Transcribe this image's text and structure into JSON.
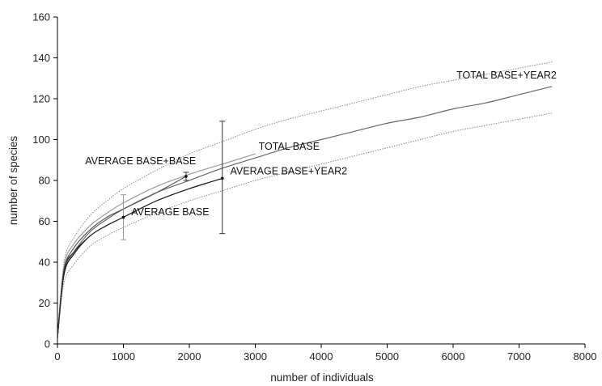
{
  "chart_data": {
    "type": "line",
    "xlabel": "number of individuals",
    "ylabel": "number of species",
    "xlim": [
      0,
      8000
    ],
    "ylim": [
      0,
      160
    ],
    "xticks": [
      0,
      1000,
      2000,
      3000,
      4000,
      5000,
      6000,
      7000,
      8000
    ],
    "yticks": [
      0,
      20,
      40,
      60,
      80,
      100,
      120,
      140,
      160
    ],
    "grid": false,
    "legend": "none",
    "series": [
      {
        "name": "TOTAL BASE+YEAR2",
        "color": "#666666",
        "style": "solid",
        "x": [
          0,
          100,
          250,
          500,
          750,
          1000,
          1500,
          2000,
          2500,
          3000,
          3500,
          4000,
          4500,
          5000,
          5500,
          6000,
          6500,
          7000,
          7500
        ],
        "y": [
          3,
          35,
          45,
          55,
          61,
          66,
          74,
          80,
          86,
          91,
          96,
          100,
          104,
          108,
          111,
          115,
          118,
          122,
          126
        ]
      },
      {
        "name": "",
        "color": "#888888",
        "style": "dotted",
        "x": [
          0,
          100,
          250,
          500,
          750,
          1000,
          1500,
          2000,
          2500,
          3000,
          3500,
          4000,
          4500,
          5000,
          5500,
          6000,
          6500,
          7000,
          7500
        ],
        "y": [
          3,
          40,
          52,
          63,
          70,
          76,
          85,
          93,
          99,
          105,
          110,
          114,
          118,
          122,
          126,
          129,
          132,
          135,
          138
        ]
      },
      {
        "name": "",
        "color": "#888888",
        "style": "dotted",
        "x": [
          0,
          100,
          250,
          500,
          750,
          1000,
          1500,
          2000,
          2500,
          3000,
          3500,
          4000,
          4500,
          5000,
          5500,
          6000,
          6500,
          7000,
          7500
        ],
        "y": [
          3,
          30,
          39,
          48,
          53,
          57,
          64,
          70,
          75,
          80,
          84,
          88,
          92,
          96,
          100,
          104,
          107,
          110,
          113
        ]
      },
      {
        "name": "TOTAL BASE",
        "color": "#999999",
        "style": "solid",
        "x": [
          0,
          100,
          250,
          500,
          750,
          1000,
          1500,
          2000,
          2500,
          3000
        ],
        "y": [
          3,
          38,
          49,
          58,
          64,
          69,
          77,
          83,
          88,
          93
        ]
      },
      {
        "name": "AVERAGE BASE+BASE",
        "color": "#555555",
        "style": "solid",
        "x": [
          0,
          100,
          250,
          500,
          750,
          1000,
          1500,
          1950
        ],
        "y": [
          3,
          36,
          47,
          56,
          62,
          66,
          74,
          82
        ]
      },
      {
        "name": "AVERAGE BASE+YEAR2",
        "color": "#111111",
        "style": "solid",
        "x": [
          0,
          100,
          250,
          500,
          750,
          1000,
          1500,
          2000,
          2500
        ],
        "y": [
          3,
          34,
          44,
          53,
          58,
          62,
          70,
          76,
          81
        ]
      },
      {
        "name": "AVERAGE BASE",
        "color": "#333333",
        "style": "solid",
        "x": [
          0,
          100,
          250,
          500,
          750,
          1000
        ],
        "y": [
          3,
          36,
          45,
          53,
          58,
          62
        ]
      }
    ],
    "error_bars": [
      {
        "x": 1000,
        "y": 62,
        "low": 51,
        "high": 73,
        "color": "#999999"
      },
      {
        "x": 1950,
        "y": 82,
        "low": 80,
        "high": 84,
        "color": "#333333"
      },
      {
        "x": 2500,
        "y": 81,
        "low": 54,
        "high": 109,
        "color": "#333333"
      }
    ],
    "annotations": [
      {
        "text": "TOTAL BASE+YEAR2",
        "x": 6050,
        "y": 130
      },
      {
        "text": "TOTAL BASE",
        "x": 3050,
        "y": 95
      },
      {
        "text": "AVERAGE BASE+BASE",
        "x": 420,
        "y": 88
      },
      {
        "text": "AVERAGE BASE+YEAR2",
        "x": 2620,
        "y": 83
      },
      {
        "text": "AVERAGE BASE",
        "x": 1120,
        "y": 63
      }
    ]
  }
}
